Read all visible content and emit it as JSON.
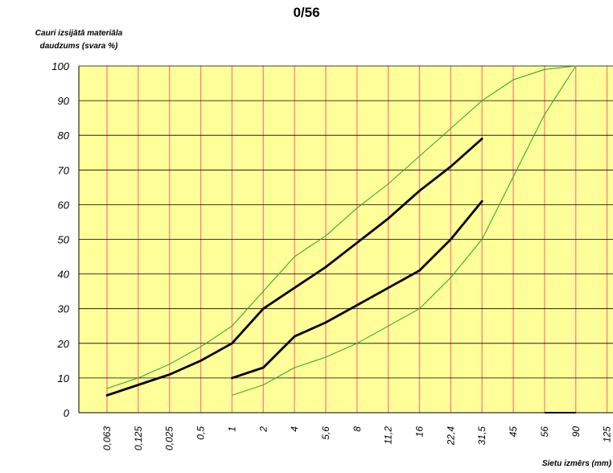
{
  "chart_data": {
    "type": "line",
    "title": "0/56",
    "ylabel_line1": "Cauri izsijātā materiāla",
    "ylabel_line2": "daudzums (svara %)",
    "xlabel": "Sietu izmērs (mm)",
    "categories": [
      "0,063",
      "0,125",
      "0,025",
      "0,5",
      "1",
      "2",
      "4",
      "5,6",
      "8",
      "11,2",
      "16",
      "22,4",
      "31,5",
      "45",
      "56",
      "90",
      "125"
    ],
    "ylim": [
      0,
      100
    ],
    "yticks": [
      0,
      10,
      20,
      30,
      40,
      50,
      60,
      70,
      80,
      90,
      100
    ],
    "grid": true,
    "background_color": "#ffff99",
    "vertical_grid_color": "#ff8080",
    "horizontal_grid_color": "#000000",
    "series": [
      {
        "style": "envelope",
        "color": "#33aa33",
        "points": [
          [
            0,
            7
          ],
          [
            1,
            10
          ],
          [
            2,
            14
          ],
          [
            3,
            19
          ],
          [
            4,
            25
          ],
          [
            5,
            35
          ],
          [
            6,
            45
          ],
          [
            7,
            51
          ],
          [
            8,
            59
          ],
          [
            9,
            66
          ],
          [
            10,
            74
          ],
          [
            11,
            82
          ],
          [
            12,
            90
          ],
          [
            13,
            96
          ],
          [
            14,
            99
          ],
          [
            15,
            100
          ]
        ]
      },
      {
        "style": "envelope",
        "color": "#33aa33",
        "points": [
          [
            4,
            5
          ],
          [
            5,
            8
          ],
          [
            6,
            13
          ],
          [
            7,
            16
          ],
          [
            8,
            20
          ],
          [
            9,
            25
          ],
          [
            10,
            30
          ],
          [
            11,
            39
          ],
          [
            12,
            50
          ],
          [
            13,
            68
          ],
          [
            14,
            86
          ],
          [
            15,
            100
          ]
        ]
      },
      {
        "style": "sample",
        "color": "#000000",
        "points": [
          [
            0,
            5
          ],
          [
            1,
            8
          ],
          [
            2,
            11
          ],
          [
            3,
            15
          ],
          [
            4,
            20
          ],
          [
            5,
            30
          ],
          [
            6,
            36
          ],
          [
            7,
            42
          ],
          [
            8,
            49
          ],
          [
            9,
            56
          ],
          [
            10,
            64
          ],
          [
            11,
            71
          ],
          [
            12,
            79
          ]
        ]
      },
      {
        "style": "sample",
        "color": "#000000",
        "points": [
          [
            4,
            10
          ],
          [
            5,
            13
          ],
          [
            6,
            22
          ],
          [
            7,
            26
          ],
          [
            8,
            31
          ],
          [
            9,
            36
          ],
          [
            10,
            41
          ],
          [
            11,
            50
          ],
          [
            12,
            61
          ]
        ]
      }
    ]
  }
}
